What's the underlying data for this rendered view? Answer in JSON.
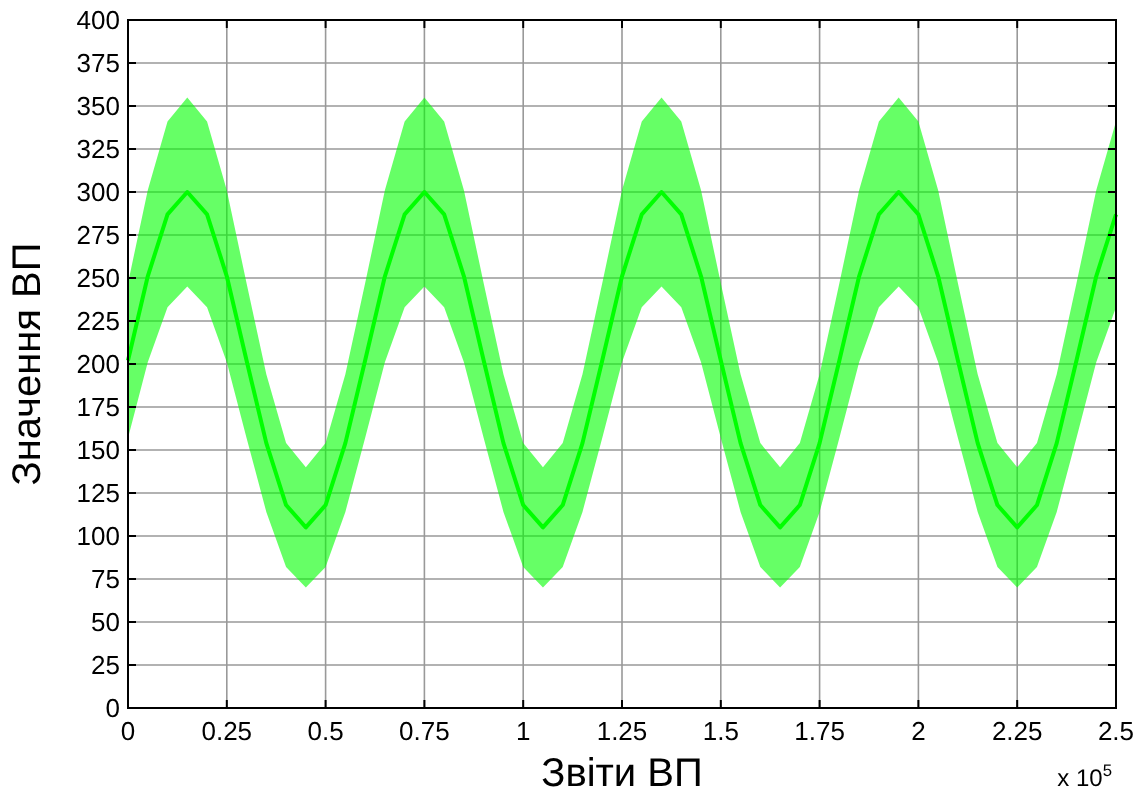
{
  "chart_data": {
    "type": "line",
    "xlabel": "Звіти ВП",
    "ylabel": "Значення ВП",
    "annotations": [
      "x 10$^{5}$"
    ],
    "x": [
      0,
      0.05,
      0.1,
      0.15,
      0.2,
      0.25,
      0.3,
      0.35,
      0.4,
      0.45,
      0.5,
      0.55,
      0.6,
      0.65,
      0.7,
      0.75,
      0.8,
      0.85,
      0.9,
      0.95,
      1,
      1.05,
      1.1,
      1.15,
      1.2,
      1.25,
      1.3,
      1.35,
      1.4,
      1.45,
      1.5,
      1.55,
      1.6,
      1.65,
      1.7,
      1.75,
      1.8,
      1.85,
      1.9,
      1.95,
      2,
      2.05,
      2.1,
      2.15,
      2.2,
      2.25,
      2.3,
      2.35,
      2.4,
      2.45,
      2.5
    ],
    "series": [
      {
        "color": "#00ff00",
        "values": [
          202,
          251,
          287,
          300,
          287,
          251,
          202,
          154,
          118,
          105,
          118,
          154,
          202,
          251,
          287,
          300,
          287,
          251,
          202,
          154,
          118,
          105,
          118,
          154,
          202,
          251,
          287,
          300,
          287,
          251,
          202,
          154,
          118,
          105,
          118,
          154,
          202,
          251,
          287,
          300,
          287,
          251,
          202,
          154,
          118,
          105,
          118,
          154,
          202,
          251,
          287
        ],
        "lower": [
          157,
          201,
          233,
          245,
          233,
          201,
          157,
          114,
          82,
          70,
          82,
          114,
          157,
          201,
          233,
          245,
          233,
          201,
          157,
          114,
          82,
          70,
          82,
          114,
          157,
          201,
          233,
          245,
          233,
          201,
          157,
          114,
          82,
          70,
          82,
          114,
          157,
          201,
          233,
          245,
          233,
          201,
          157,
          114,
          82,
          70,
          82,
          114,
          157,
          201,
          233
        ],
        "upper": [
          247,
          301,
          341,
          355,
          341,
          301,
          247,
          194,
          154,
          140,
          154,
          194,
          247,
          301,
          341,
          355,
          341,
          301,
          247,
          194,
          154,
          140,
          154,
          194,
          247,
          301,
          341,
          355,
          341,
          301,
          247,
          194,
          154,
          140,
          154,
          194,
          247,
          301,
          341,
          355,
          341,
          301,
          247,
          194,
          154,
          140,
          154,
          194,
          247,
          301,
          341
        ]
      }
    ],
    "xlim": [
      0,
      2.5
    ],
    "xticks": [
      0,
      0.25,
      0.5,
      0.75,
      1,
      1.25,
      1.5,
      1.75,
      2,
      2.25,
      2.5
    ],
    "ylim": [
      0,
      400
    ],
    "yticks": [
      0,
      25,
      50,
      75,
      100,
      125,
      150,
      175,
      200,
      225,
      250,
      275,
      300,
      325,
      350,
      375,
      400
    ],
    "grid": true,
    "line_style": "solid"
  }
}
